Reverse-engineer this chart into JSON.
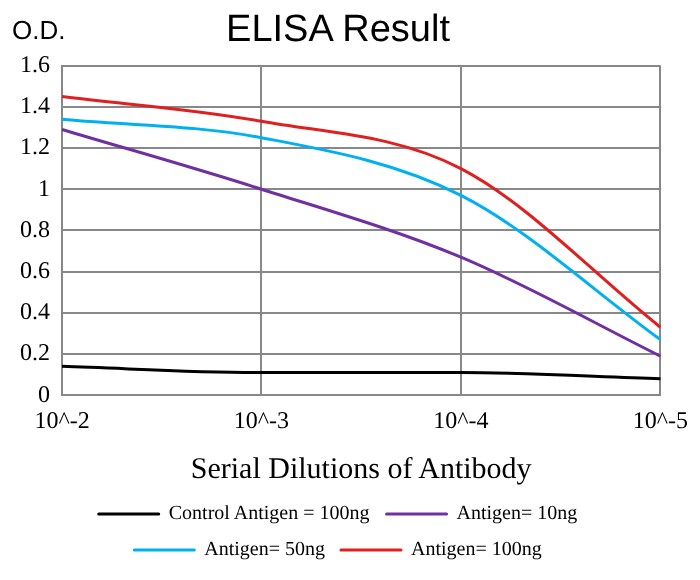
{
  "chart_data": {
    "type": "line",
    "title": "ELISA Result",
    "xlabel": "Serial Dilutions of Antibody",
    "ylabel": "O.D.",
    "categories": [
      "10^-2",
      "10^-3",
      "10^-4",
      "10^-5"
    ],
    "series": [
      {
        "name": "Control Antigen = 100ng",
        "color": "#000000",
        "values": [
          0.14,
          0.11,
          0.11,
          0.08
        ]
      },
      {
        "name": "Antigen= 10ng",
        "color": "#7030a0",
        "values": [
          1.29,
          1.0,
          0.67,
          0.19
        ]
      },
      {
        "name": "Antigen= 50ng",
        "color": "#00b0f0",
        "values": [
          1.34,
          1.25,
          0.97,
          0.27
        ]
      },
      {
        "name": "Antigen= 100ng",
        "color": "#e02020",
        "values": [
          1.45,
          1.33,
          1.1,
          0.33
        ]
      }
    ],
    "ylim": [
      0,
      1.6
    ],
    "yticks": [
      0,
      0.2,
      0.4,
      0.6,
      0.8,
      1,
      1.2,
      1.4,
      1.6
    ],
    "grid": true,
    "legend": "bottom",
    "marker": "none",
    "line_style": "solid"
  }
}
